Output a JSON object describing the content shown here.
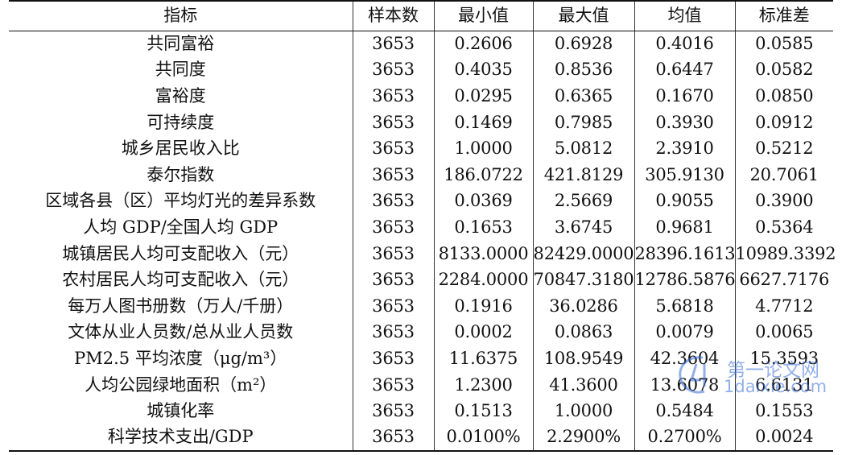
{
  "table": {
    "headers": [
      "指标",
      "样本数",
      "最小值",
      "最大值",
      "均值",
      "标准差"
    ],
    "rows": [
      [
        "共同富裕",
        "3653",
        "0.2606",
        "0.6928",
        "0.4016",
        "0.0585"
      ],
      [
        "共同度",
        "3653",
        "0.4035",
        "0.8536",
        "0.6447",
        "0.0582"
      ],
      [
        "富裕度",
        "3653",
        "0.0295",
        "0.6365",
        "0.1670",
        "0.0850"
      ],
      [
        "可持续度",
        "3653",
        "0.1469",
        "0.7985",
        "0.3930",
        "0.0912"
      ],
      [
        "城乡居民收入比",
        "3653",
        "1.0000",
        "5.0812",
        "2.3910",
        "0.5212"
      ],
      [
        "泰尔指数",
        "3653",
        "186.0722",
        "421.8129",
        "305.9130",
        "20.7061"
      ],
      [
        "区域各县（区）平均灯光的差异系数",
        "3653",
        "0.0369",
        "2.5669",
        "0.9055",
        "0.3900"
      ],
      [
        "人均 GDP/全国人均 GDP",
        "3653",
        "0.1653",
        "3.6745",
        "0.9681",
        "0.5364"
      ],
      [
        "城镇居民人均可支配收入（元）",
        "3653",
        "8133.0000",
        "82429.0000",
        "28396.1613",
        "10989.3392"
      ],
      [
        "农村居民人均可支配收入（元）",
        "3653",
        "2284.0000",
        "70847.3180",
        "12786.5876",
        "6627.7176"
      ],
      [
        "每万人图书册数（万人/千册）",
        "3653",
        "0.1916",
        "36.0286",
        "5.6818",
        "4.7712"
      ],
      [
        "文体从业人员数/总从业人员数",
        "3653",
        "0.0002",
        "0.0863",
        "0.0079",
        "0.0065"
      ],
      [
        "PM2.5 平均浓度（μg/m³）",
        "3653",
        "11.6375",
        "108.9549",
        "42.3604",
        "15.3593"
      ],
      [
        "人均公园绿地面积（m²）",
        "3653",
        "1.2300",
        "41.3600",
        "13.6078",
        "6.6131"
      ],
      [
        "城镇化率",
        "3653",
        "0.1513",
        "1.0000",
        "0.5484",
        "0.1553"
      ],
      [
        "科学技术支出/GDP",
        "3653",
        "0.0100%",
        "2.2900%",
        "0.2700%",
        "0.0024"
      ]
    ]
  },
  "watermark": {
    "text_cn": "第一论文网",
    "text_en": "1daixie.com",
    "color": "#3a6fd6"
  }
}
